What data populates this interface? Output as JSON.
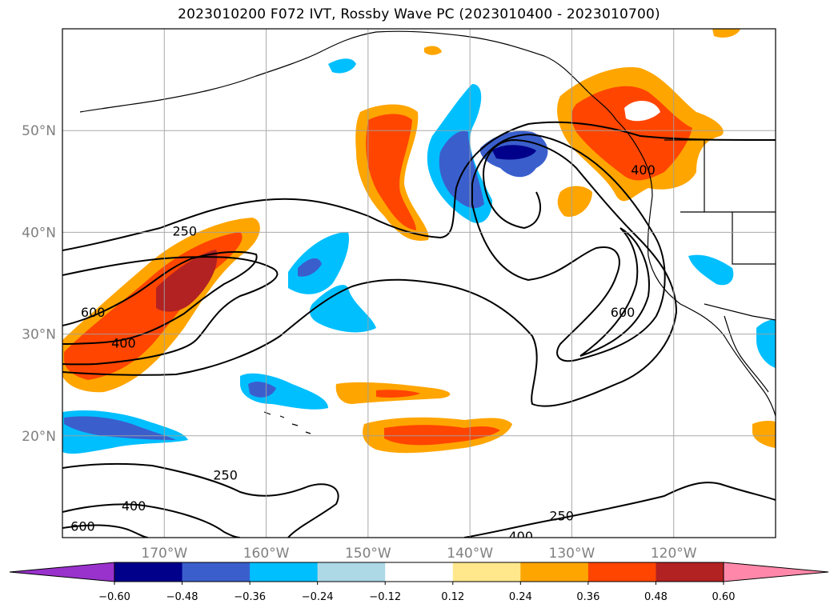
{
  "title": "2023010200 F072 IVT, Rossby Wave PC (2023010400 - 2023010700)",
  "map": {
    "projection": "PlateCarree",
    "lon_range": [
      -180,
      -110
    ],
    "lat_range": [
      10,
      60
    ],
    "grid": true,
    "lon_ticks": [
      {
        "value": -170,
        "label": "170°W"
      },
      {
        "value": -160,
        "label": "160°W"
      },
      {
        "value": -150,
        "label": "150°W"
      },
      {
        "value": -140,
        "label": "140°W"
      },
      {
        "value": -130,
        "label": "130°W"
      },
      {
        "value": -120,
        "label": "120°W"
      }
    ],
    "lat_ticks": [
      {
        "value": 20,
        "label": "20°N"
      },
      {
        "value": 30,
        "label": "30°N"
      },
      {
        "value": 40,
        "label": "40°N"
      },
      {
        "value": 50,
        "label": "50°N"
      }
    ],
    "ivt_contour_levels": [
      250,
      400,
      600
    ],
    "contour_labels": [
      {
        "text": "250",
        "lon": -168,
        "lat": 40
      },
      {
        "text": "600",
        "lon": -177,
        "lat": 32
      },
      {
        "text": "400",
        "lon": -174,
        "lat": 29
      },
      {
        "text": "250",
        "lon": -164,
        "lat": 16
      },
      {
        "text": "400",
        "lon": -173,
        "lat": 13
      },
      {
        "text": "600",
        "lon": -178,
        "lat": 11
      },
      {
        "text": "250",
        "lon": -131,
        "lat": 12
      },
      {
        "text": "400",
        "lon": -135,
        "lat": 10
      },
      {
        "text": "600",
        "lon": -125,
        "lat": 32
      },
      {
        "text": "400",
        "lon": -123,
        "lat": 46
      }
    ]
  },
  "colorbar": {
    "extend": "both",
    "tick_labels": [
      "−0.60",
      "−0.48",
      "−0.36",
      "−0.24",
      "−0.12",
      "0.12",
      "0.24",
      "0.36",
      "0.48",
      "0.60"
    ],
    "colors": {
      "under": "#9932cc",
      "n060_n048": "#00008b",
      "n048_n036": "#3a5fcd",
      "n036_n024": "#00bfff",
      "n024_n012": "#add8e6",
      "n012_p012": "#ffffff",
      "p012_p024": "#ffe88c",
      "p024_p036": "#ffa500",
      "p036_p048": "#ff4500",
      "p048_p060": "#b22222",
      "over": "#ff88aa"
    }
  }
}
